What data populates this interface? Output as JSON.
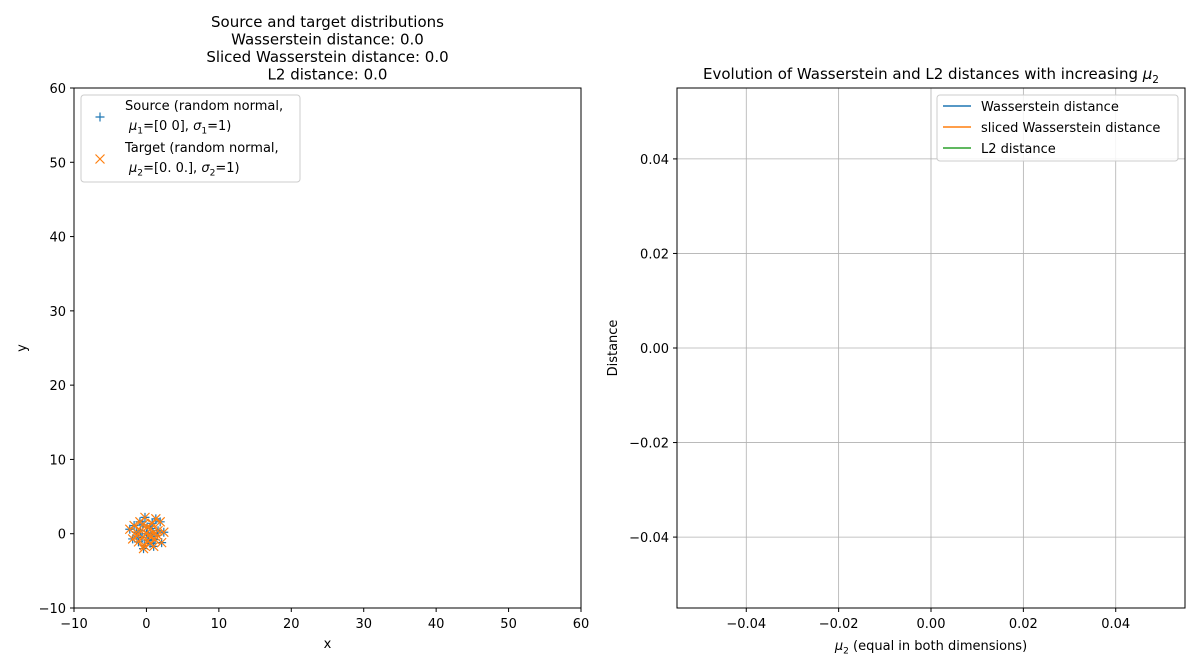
{
  "chart_data": [
    {
      "type": "scatter",
      "title_lines": [
        "Source and target distributions",
        "Wasserstein distance: 0.0",
        "Sliced Wasserstein distance: 0.0",
        "L2 distance: 0.0"
      ],
      "xlabel": "x",
      "ylabel": "y",
      "xlim": [
        -10,
        60
      ],
      "ylim": [
        -10,
        60
      ],
      "xticks": [
        -10,
        0,
        10,
        20,
        30,
        40,
        50,
        60
      ],
      "yticks": [
        -10,
        0,
        10,
        20,
        30,
        40,
        50,
        60
      ],
      "grid": false,
      "legend_placement": "upper-left",
      "series": [
        {
          "name_lines": [
            "Source (random normal,",
            "μ1=[0 0], σ1=1)"
          ],
          "marker": "+",
          "color": "#1f77b4",
          "points": [
            [
              -0.9,
              1.6
            ],
            [
              0.3,
              -0.2
            ],
            [
              -1.4,
              0.2
            ],
            [
              0.8,
              1.4
            ],
            [
              1.2,
              -0.8
            ],
            [
              -0.3,
              -1.6
            ],
            [
              2.1,
              -1.2
            ],
            [
              -2.3,
              0.6
            ],
            [
              0.1,
              0.9
            ],
            [
              -0.6,
              -0.5
            ],
            [
              1.6,
              0.4
            ],
            [
              0.5,
              -1.3
            ],
            [
              -1.1,
              -1.1
            ],
            [
              1.3,
              2.0
            ],
            [
              -0.2,
              2.2
            ],
            [
              0.9,
              0.1
            ],
            [
              -1.7,
              1.1
            ],
            [
              0.2,
              -0.9
            ],
            [
              1.9,
              1.6
            ],
            [
              -0.8,
              0.4
            ],
            [
              0.6,
              0.7
            ],
            [
              -0.4,
              -2.0
            ],
            [
              1.0,
              -1.7
            ],
            [
              -1.3,
              -0.3
            ],
            [
              0.0,
              0.0
            ],
            [
              2.4,
              0.2
            ],
            [
              -0.5,
              1.2
            ],
            [
              0.7,
              -0.4
            ],
            [
              -1.9,
              -0.7
            ],
            [
              1.5,
              -0.2
            ]
          ]
        },
        {
          "name_lines": [
            "Target (random normal,",
            "μ2=[0. 0.], σ2=1)"
          ],
          "marker": "x",
          "color": "#ff7f0e",
          "points": [
            [
              -0.9,
              1.6
            ],
            [
              0.3,
              -0.2
            ],
            [
              -1.4,
              0.2
            ],
            [
              0.8,
              1.4
            ],
            [
              1.2,
              -0.8
            ],
            [
              -0.3,
              -1.6
            ],
            [
              2.1,
              -1.2
            ],
            [
              -2.3,
              0.6
            ],
            [
              0.1,
              0.9
            ],
            [
              -0.6,
              -0.5
            ],
            [
              1.6,
              0.4
            ],
            [
              0.5,
              -1.3
            ],
            [
              -1.1,
              -1.1
            ],
            [
              1.3,
              2.0
            ],
            [
              -0.2,
              2.2
            ],
            [
              0.9,
              0.1
            ],
            [
              -1.7,
              1.1
            ],
            [
              0.2,
              -0.9
            ],
            [
              1.9,
              1.6
            ],
            [
              -0.8,
              0.4
            ],
            [
              0.6,
              0.7
            ],
            [
              -0.4,
              -2.0
            ],
            [
              1.0,
              -1.7
            ],
            [
              -1.3,
              -0.3
            ],
            [
              0.0,
              0.0
            ],
            [
              2.4,
              0.2
            ],
            [
              -0.5,
              1.2
            ],
            [
              0.7,
              -0.4
            ],
            [
              -1.9,
              -0.7
            ],
            [
              1.5,
              -0.2
            ]
          ]
        }
      ]
    },
    {
      "type": "line",
      "title": "Evolution of Wasserstein and L2 distances with increasing μ2",
      "xlabel": "μ2 (equal in both dimensions)",
      "ylabel": "Distance",
      "xlim": [
        -0.055,
        0.055
      ],
      "ylim": [
        -0.055,
        0.055
      ],
      "xticks": [
        -0.04,
        -0.02,
        0.0,
        0.02,
        0.04
      ],
      "yticks": [
        0.04,
        0.02,
        0.0,
        -0.02,
        -0.04
      ],
      "xtick_labels": [
        "−0.04",
        "−0.02",
        "0.00",
        "0.02",
        "0.04"
      ],
      "ytick_labels": [
        "0.04",
        "0.02",
        "0.00",
        "−0.02",
        "−0.04"
      ],
      "grid": true,
      "legend_placement": "upper-right",
      "series": [
        {
          "name": "Wasserstein distance",
          "color": "#1f77b4",
          "x": [],
          "y": []
        },
        {
          "name": "sliced Wasserstein distance",
          "color": "#ff7f0e",
          "x": [],
          "y": []
        },
        {
          "name": "L2 distance",
          "color": "#2ca02c",
          "x": [],
          "y": []
        }
      ]
    }
  ]
}
